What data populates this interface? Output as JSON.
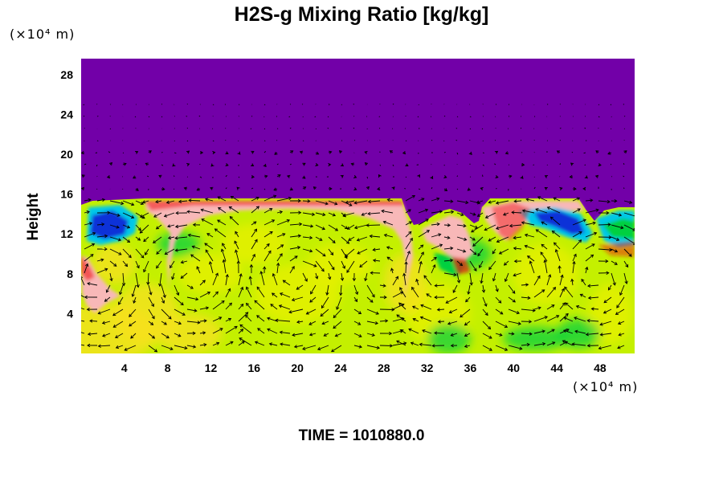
{
  "chart_data": {
    "type": "heatmap",
    "title": "H2S-g Mixing Ratio [kg/kg]",
    "ylabel": "Height",
    "y_unit": "(×10⁴ m)",
    "x_unit": "(×10⁴ m)",
    "xlim": [
      0,
      51.2
    ],
    "ylim": [
      0,
      29.6
    ],
    "x_ticks": [
      4,
      8,
      12,
      16,
      20,
      24,
      28,
      32,
      36,
      40,
      44,
      48
    ],
    "y_ticks": [
      4,
      8,
      12,
      16,
      20,
      24,
      28
    ],
    "colors": {
      "background_top": "#7200A8",
      "field_base": "#C4F000",
      "field_light": "#E8F000",
      "field_yellow": "#F8E020",
      "green": "#00D040",
      "cyan": "#00C8E8",
      "blue": "#1030D8",
      "pink": "#F8B8B8",
      "red": "#F01010",
      "arrow": "#000000"
    },
    "overlay": "velocity vectors",
    "footer": "TIME = 1010880.0"
  }
}
